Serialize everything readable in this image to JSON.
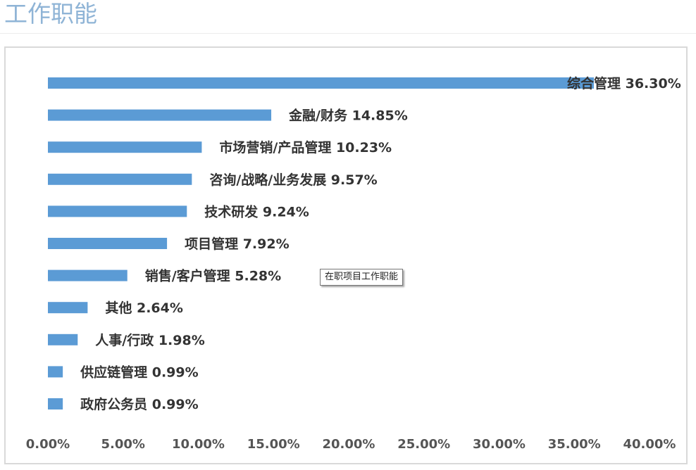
{
  "page": {
    "title": "工作职能"
  },
  "tooltip": {
    "text": "在职项目工作职能"
  },
  "chart_data": {
    "type": "bar",
    "orientation": "horizontal",
    "categories": [
      "综合管理",
      "金融/财务",
      "市场营销/产品管理",
      "咨询/战略/业务发展",
      "技术研发",
      "项目管理",
      "销售/客户管理",
      "其他",
      "人事/行政",
      "供应链管理",
      "政府公务员"
    ],
    "values": [
      36.3,
      14.85,
      10.23,
      9.57,
      9.24,
      7.92,
      5.28,
      2.64,
      1.98,
      0.99,
      0.99
    ],
    "labels": [
      "综合管理 36.30%",
      "金融/财务 14.85%",
      "市场营销/产品管理 10.23%",
      "咨询/战略/业务发展 9.57%",
      "技术研发 9.24%",
      "项目管理 7.92%",
      "销售/客户管理 5.28%",
      "其他 2.64%",
      "人事/行政 1.98%",
      "供应链管理 0.99%",
      "政府公务员 0.99%"
    ],
    "xlim": [
      0,
      40
    ],
    "x_ticks": [
      "0.00%",
      "5.00%",
      "10.00%",
      "15.00%",
      "20.00%",
      "25.00%",
      "30.00%",
      "35.00%",
      "40.00%"
    ],
    "bar_color": "#5b9bd5",
    "grid": false,
    "legend": "none"
  }
}
